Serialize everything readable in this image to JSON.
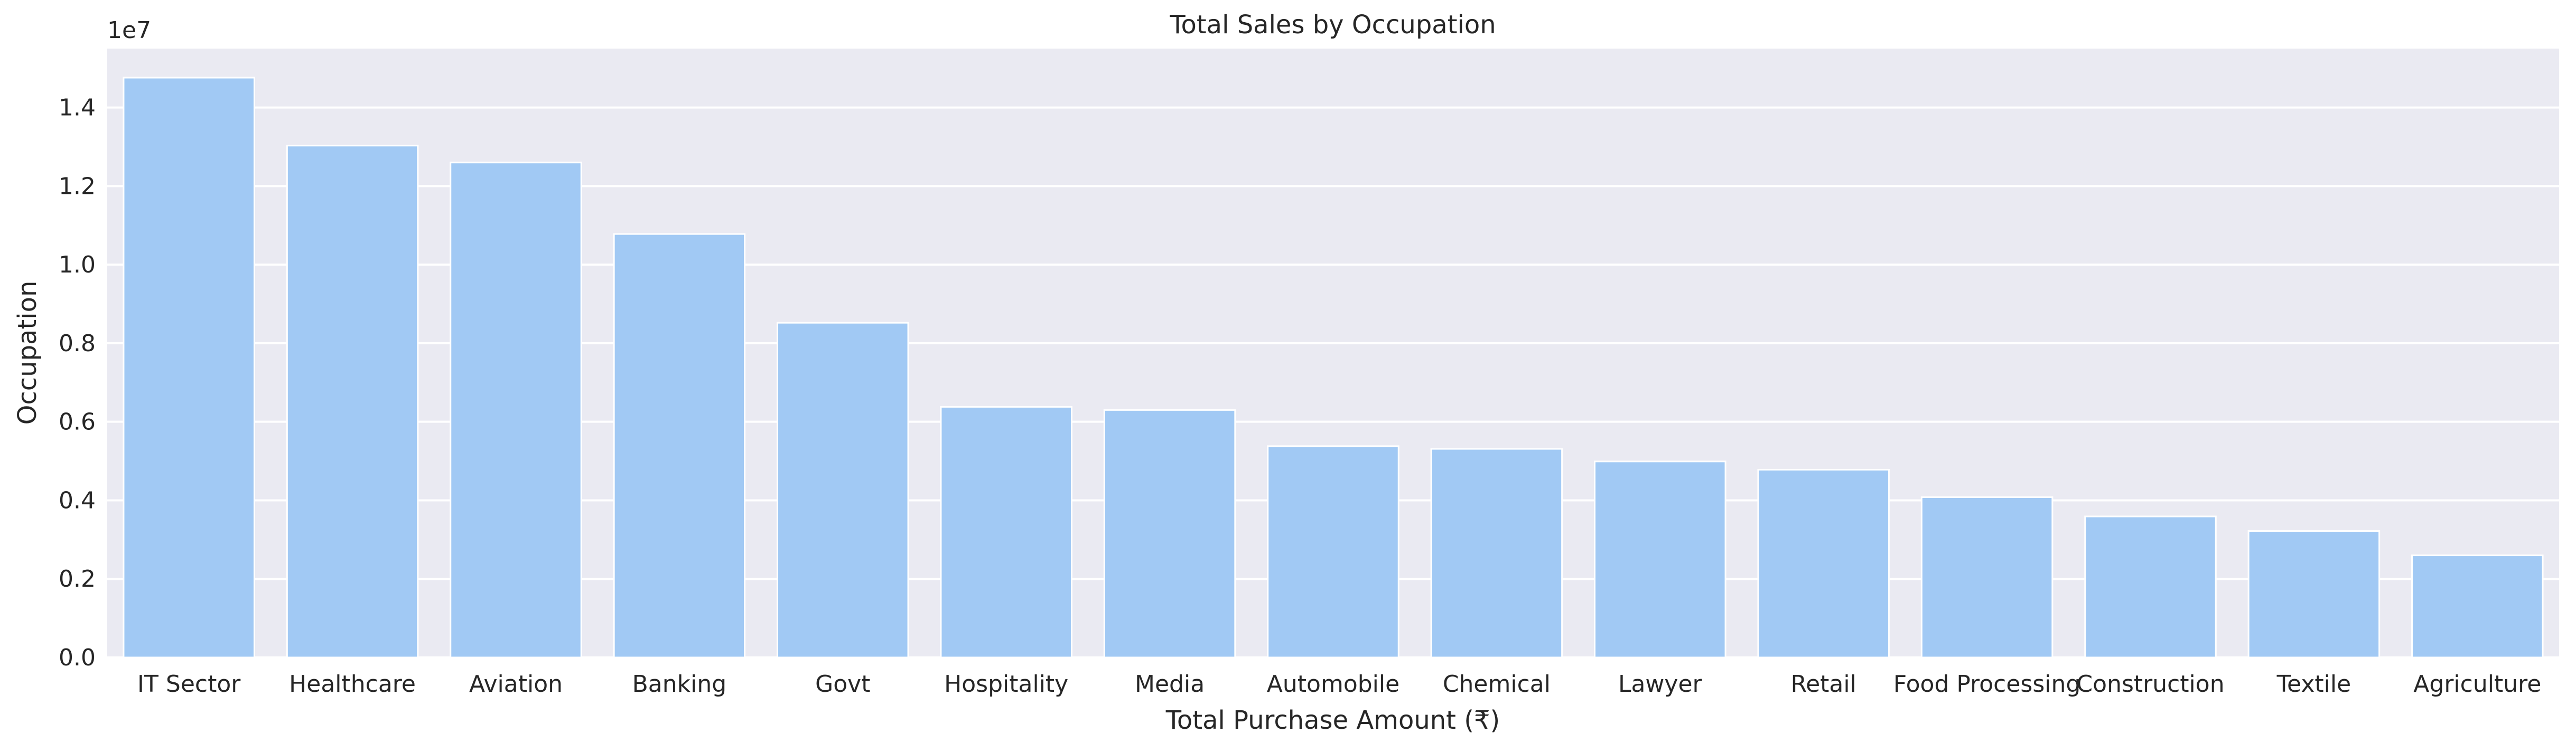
{
  "chart_data": {
    "type": "bar",
    "title": "Total Sales by Occupation",
    "xlabel": "Total Purchase Amount (₹)",
    "ylabel": "Occupation",
    "y_offset_label": "1e7",
    "ylim": [
      0,
      1.55
    ],
    "yticks": [
      0.0,
      0.2,
      0.4,
      0.6,
      0.8,
      1.0,
      1.2,
      1.4
    ],
    "grid": true,
    "categories": [
      "IT Sector",
      "Healthcare",
      "Aviation",
      "Banking",
      "Govt",
      "Hospitality",
      "Media",
      "Automobile",
      "Chemical",
      "Lawyer",
      "Retail",
      "Food Processing",
      "Construction",
      "Textile",
      "Agriculture"
    ],
    "values": [
      1.476,
      1.303,
      1.26,
      1.078,
      0.852,
      0.638,
      0.63,
      0.538,
      0.531,
      0.499,
      0.478,
      0.408,
      0.359,
      0.322,
      0.26
    ],
    "colors": {
      "bar": "#A1C9F4",
      "background": "#EAEAF2",
      "grid": "#FFFFFF",
      "text": "#262626"
    }
  }
}
